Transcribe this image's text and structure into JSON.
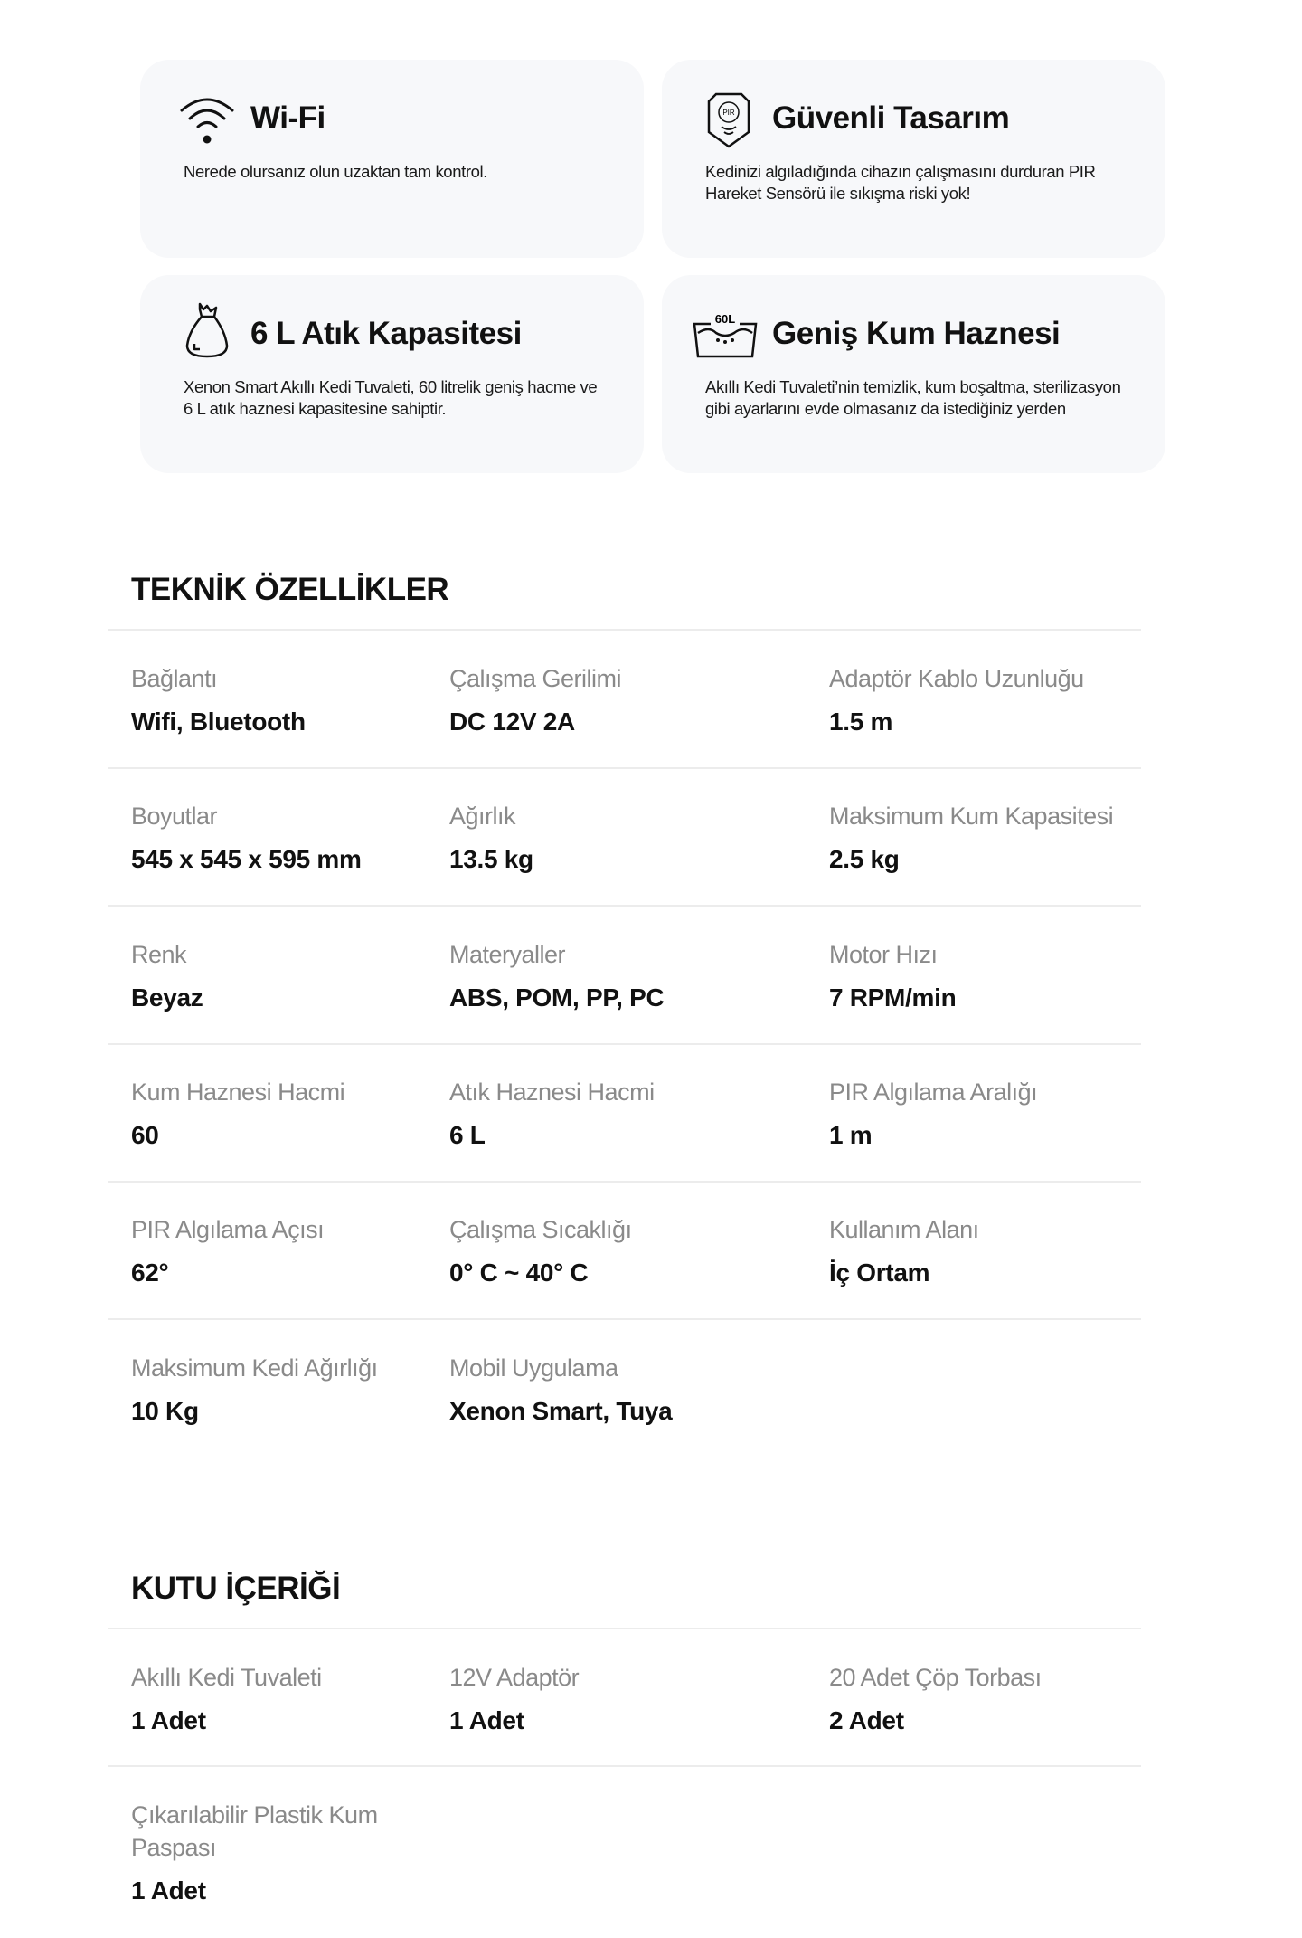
{
  "features": [
    {
      "icon": "wifi-icon",
      "title": "Wi-Fi",
      "desc": "Nerede olursanız olun uzaktan tam kontrol."
    },
    {
      "icon": "pir-shield-icon",
      "icon_text": "PIR",
      "title": "Güvenli Tasarım",
      "desc": "Kedinizi algıladığında cihazın çalışmasını durduran PIR Hareket Sensörü ile sıkışma riski yok!"
    },
    {
      "icon": "waste-bag-icon",
      "title": "6 L Atık Kapasitesi",
      "desc": "Xenon Smart Akıllı Kedi Tuvaleti, 60 litrelik geniş hacme ve 6 L atık haznesi kapasitesine sahiptir."
    },
    {
      "icon": "litter-box-60l-icon",
      "icon_text": "60L",
      "title": "Geniş Kum Haznesi",
      "desc": "Akıllı Kedi Tuvaleti’nin temizlik, kum boşaltma, sterilizasyon gibi ayarlarını evde olmasanız da istediğiniz yerden"
    }
  ],
  "specs": {
    "title": "TEKNİK ÖZELLİKLER",
    "items": [
      {
        "label": "Bağlantı",
        "value": "Wifi, Bluetooth"
      },
      {
        "label": "Çalışma Gerilimi",
        "value": "DC 12V 2A"
      },
      {
        "label": "Adaptör Kablo Uzunluğu",
        "value": "1.5 m"
      },
      {
        "label": "Boyutlar",
        "value": "545 x 545 x 595 mm"
      },
      {
        "label": "Ağırlık",
        "value": "13.5 kg"
      },
      {
        "label": "Maksimum Kum Kapasitesi",
        "value": "2.5 kg"
      },
      {
        "label": "Renk",
        "value": "Beyaz"
      },
      {
        "label": "Materyaller",
        "value": "ABS, POM, PP, PC"
      },
      {
        "label": "Motor Hızı",
        "value": "7 RPM/min"
      },
      {
        "label": "Kum Haznesi Hacmi",
        "value": "60"
      },
      {
        "label": "Atık Haznesi Hacmi",
        "value": "6 L"
      },
      {
        "label": "PIR Algılama Aralığı",
        "value": "1 m"
      },
      {
        "label": "PIR Algılama Açısı",
        "value": "62°"
      },
      {
        "label": "Çalışma Sıcaklığı",
        "value": "0° C ~ 40° C"
      },
      {
        "label": "Kullanım Alanı",
        "value": "İç Ortam"
      },
      {
        "label": "Maksimum Kedi Ağırlığı",
        "value": "10 Kg"
      },
      {
        "label": "Mobil Uygulama",
        "value": "Xenon Smart, Tuya"
      }
    ]
  },
  "box": {
    "title": "KUTU İÇERİĞİ",
    "items": [
      {
        "label": "Akıllı Kedi Tuvaleti",
        "value": "1 Adet"
      },
      {
        "label": "12V Adaptör",
        "value": "1 Adet"
      },
      {
        "label": "20 Adet Çöp Torbası",
        "value": "2 Adet"
      },
      {
        "label": "Çıkarılabilir Plastik Kum Paspası",
        "value": "1 Adet"
      }
    ]
  }
}
